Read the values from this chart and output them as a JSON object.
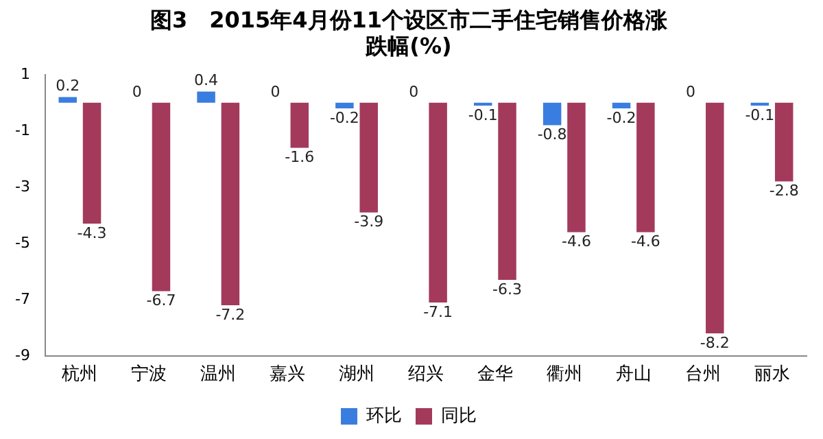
{
  "chart_data": {
    "type": "bar",
    "title": "图3　2015年4月份11个设区市二手住宅销售价格涨跌幅(%)",
    "categories": [
      "杭州",
      "宁波",
      "温州",
      "嘉兴",
      "湖州",
      "绍兴",
      "金华",
      "衢州",
      "舟山",
      "台州",
      "丽水"
    ],
    "series": [
      {
        "name": "环比",
        "color": "#3a7de0",
        "values": [
          0.2,
          0,
          0.4,
          0,
          -0.2,
          0,
          -0.1,
          -0.8,
          -0.2,
          0,
          -0.1
        ]
      },
      {
        "name": "同比",
        "color": "#a33a5c",
        "values": [
          -4.3,
          -6.7,
          -7.2,
          -1.6,
          -3.9,
          -7.1,
          -6.3,
          -4.6,
          -4.6,
          -8.2,
          -2.8
        ]
      }
    ],
    "ylim": [
      -9,
      1
    ],
    "yticks": [
      1,
      -1,
      -3,
      -5,
      -7,
      -9
    ],
    "grid": false,
    "legend": "bottom",
    "data_labels": true
  }
}
